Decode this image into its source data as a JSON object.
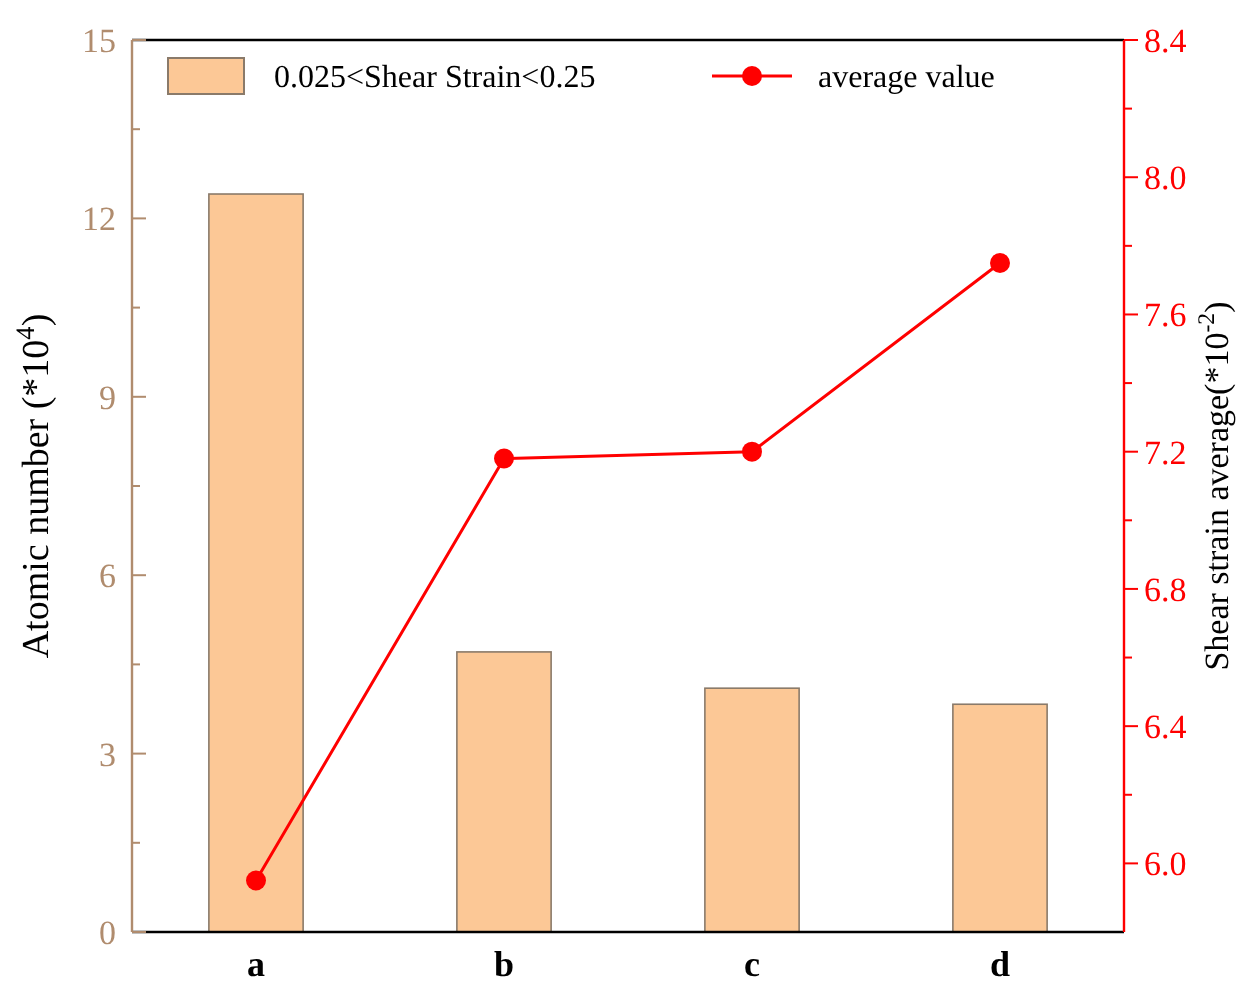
{
  "chart_data": {
    "type": "bar",
    "categories": [
      "a",
      "b",
      "c",
      "d"
    ],
    "ylabel": "Atomic number  (*10$^{4}$)",
    "y2label": "Shear strain average(*10$^{-2}$)",
    "series": [
      {
        "name": "0.025<Shear Strain<0.25",
        "color": "#fcc896",
        "values": [
          12.41,
          4.71,
          4.1,
          3.83
        ]
      },
      {
        "name": "average value",
        "type": "line",
        "color": "#ff0000",
        "axis": "y2",
        "marker": "circle",
        "values": [
          5.95,
          7.18,
          7.2,
          7.75
        ]
      }
    ],
    "ylim": [
      0,
      15
    ],
    "yticks": [
      0,
      {
        "value": 1.5,
        "label": null
      },
      3,
      {
        "value": 4.5,
        "label": null
      },
      6,
      {
        "value": 7.5,
        "label": null
      },
      9,
      {
        "value": 10.5,
        "label": null
      },
      12,
      {
        "value": 13.5,
        "label": null
      },
      15
    ],
    "y2lim": [
      5.8,
      8.4
    ],
    "y2ticks": [
      {
        "value": 6,
        "label": "6.0"
      },
      {
        "value": 6.2,
        "label": null
      },
      6.4,
      {
        "value": 6.6,
        "label": null
      },
      6.8,
      {
        "value": 7,
        "label": null
      },
      7.2,
      {
        "value": 7.4,
        "label": null
      },
      7.6,
      {
        "value": 7.8,
        "label": null
      },
      {
        "value": 8,
        "label": "8.0"
      },
      {
        "value": 8.2,
        "label": null
      },
      8.4
    ],
    "legend": "top",
    "grid": false
  }
}
